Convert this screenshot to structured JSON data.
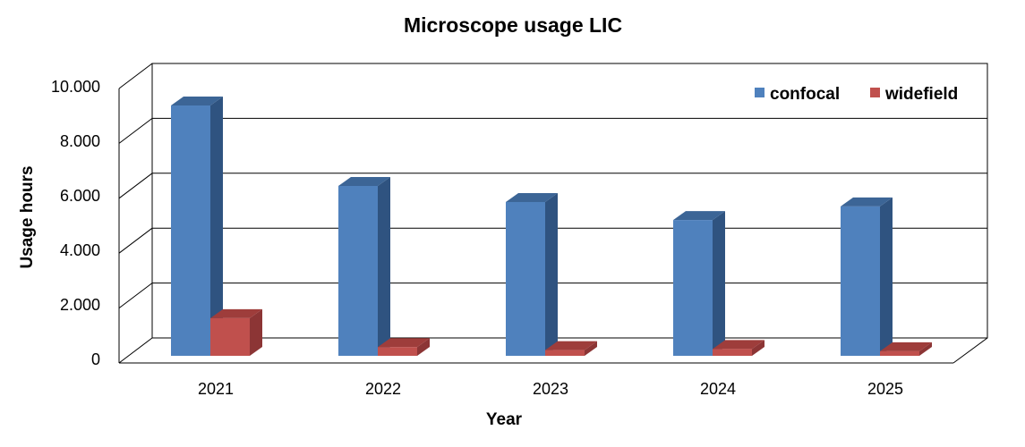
{
  "chart_data": {
    "type": "bar",
    "title": "Microscope usage LIC",
    "xlabel": "Year",
    "ylabel": "Usage hours",
    "categories": [
      "2021",
      "2022",
      "2023",
      "2024",
      "2025"
    ],
    "series": [
      {
        "name": "confocal",
        "values": [
          9180,
          6230,
          5640,
          4980,
          5480
        ],
        "color": "#4F81BD"
      },
      {
        "name": "widefield",
        "values": [
          1380,
          320,
          210,
          250,
          170
        ],
        "color": "#C0504D"
      }
    ],
    "ylim": [
      0,
      10000
    ],
    "yticks": [
      "0",
      "2.000",
      "4.000",
      "6.000",
      "8.000",
      "10.000"
    ],
    "grid": true,
    "legend": "top-right",
    "style": "3d-clustered-column"
  }
}
